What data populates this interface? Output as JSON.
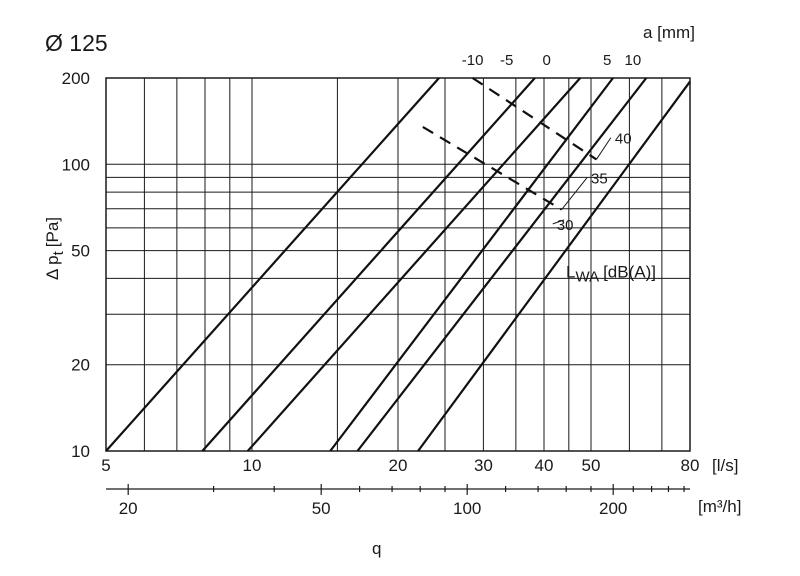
{
  "chart_data": {
    "type": "line",
    "title": "Ø 125",
    "xscale": "log",
    "yscale": "log",
    "xlim": [
      5,
      80
    ],
    "ylim": [
      10,
      200
    ],
    "xlabel": "q",
    "x_unit": "[l/s]",
    "x2_unit": "[m³/h]",
    "ylabel_main": "Δ p",
    "ylabel_sub": "t",
    "ylabel_unit": "[Pa]",
    "top_axis_label": "a [mm]",
    "x_ticks": [
      "5",
      "10",
      "20",
      "30",
      "40",
      "50",
      "80"
    ],
    "x_tick_values": [
      5,
      10,
      20,
      30,
      40,
      50,
      80
    ],
    "x_minor_grid": [
      6,
      7,
      8,
      9,
      15,
      25,
      35,
      45,
      60,
      70
    ],
    "x2_ticks": [
      "20",
      "50",
      "100",
      "200"
    ],
    "x2_tick_values": [
      20,
      50,
      100,
      200
    ],
    "x2_minor": [
      30,
      40,
      60,
      70,
      80,
      90,
      120,
      140,
      160,
      180,
      220,
      240,
      260,
      280
    ],
    "y_ticks": [
      "10",
      "20",
      "50",
      "100",
      "200"
    ],
    "y_tick_values": [
      10,
      20,
      50,
      100,
      200
    ],
    "y_minor_grid": [
      40,
      30,
      60,
      70,
      80,
      90
    ],
    "series": [
      {
        "name": "",
        "x": [
          5,
          24.3
        ],
        "y": [
          10,
          200
        ]
      },
      {
        "name": "-10",
        "x": [
          7.9,
          38.3
        ],
        "y": [
          10,
          200
        ]
      },
      {
        "name": "-5",
        "x": [
          9.8,
          47.5
        ],
        "y": [
          10,
          200
        ]
      },
      {
        "name": "0",
        "x": [
          14.5,
          55.5
        ],
        "y": [
          10,
          200
        ]
      },
      {
        "name": "5",
        "x": [
          16.5,
          65
        ],
        "y": [
          10,
          200
        ]
      },
      {
        "name": "10",
        "x": [
          22,
          81
        ],
        "y": [
          10,
          200
        ]
      }
    ],
    "top_labels": [
      {
        "text": "-10",
        "x": 28.5
      },
      {
        "text": "-5",
        "x": 33.5
      },
      {
        "text": "0",
        "x": 40.5
      },
      {
        "text": "5",
        "x": 54
      },
      {
        "text": "10",
        "x": 61
      }
    ],
    "sound_lines": [
      {
        "label": "40",
        "x": [
          28.5,
          51.3
        ],
        "y": [
          200,
          104
        ],
        "label_x": 56,
        "label_y": 120
      },
      {
        "label": "35",
        "x": [
          22.5,
          43.5
        ],
        "y": [
          135,
          69.5
        ],
        "label_x": 50,
        "label_y": 87
      },
      {
        "label": "30",
        "x": [
          44,
          44
        ],
        "y": [
          64,
          64
        ],
        "label_x": 42.5,
        "label_y": 60
      }
    ],
    "sound_legend": {
      "main": "L",
      "sub": "WA",
      "unit": "[dB(A)]",
      "x": 40,
      "y": 43
    }
  }
}
